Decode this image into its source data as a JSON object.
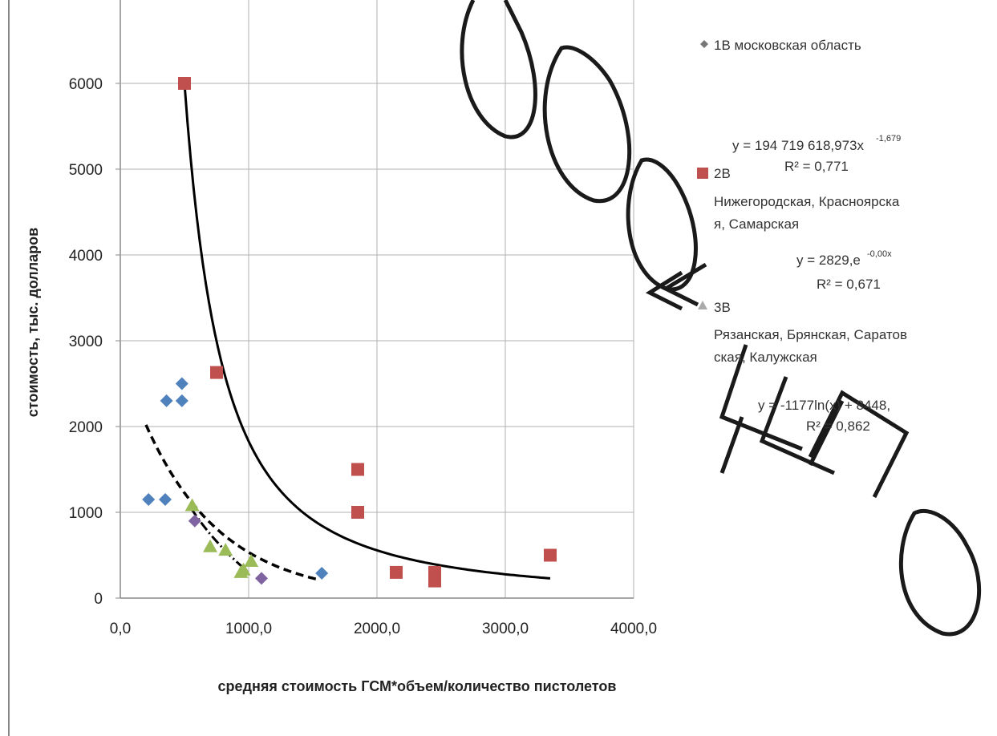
{
  "chart_data": {
    "type": "scatter",
    "title": "",
    "xlabel": "средняя стоимость ГСМ*объем/количество пистолетов",
    "ylabel": "стоимость, тыс. долларов",
    "xlim": [
      0,
      4000
    ],
    "ylim": [
      0,
      6000
    ],
    "x_ticks": [
      0,
      1000,
      2000,
      3000,
      4000
    ],
    "x_tick_labels": [
      "0,0",
      "1000,0",
      "2000,0",
      "3000,0",
      "4000,0"
    ],
    "y_ticks": [
      0,
      1000,
      2000,
      3000,
      4000,
      5000,
      6000
    ],
    "y_tick_labels": [
      "0",
      "1000",
      "2000",
      "3000",
      "4000",
      "5000",
      "6000"
    ],
    "grid": true,
    "legend_position": "right",
    "series": [
      {
        "name": "1В московская область",
        "marker": "diamond",
        "color": "#4f81bd",
        "points": [
          [
            220,
            1150
          ],
          [
            350,
            1150
          ],
          [
            360,
            2300
          ],
          [
            480,
            2300
          ],
          [
            480,
            2500
          ],
          [
            580,
            900
          ],
          [
            1100,
            230
          ],
          [
            1570,
            290
          ]
        ]
      },
      {
        "name": "2В Нижегородская, Красноярская, Самарская",
        "marker": "square",
        "color": "#c0504d",
        "points": [
          [
            500,
            6000
          ],
          [
            750,
            2630
          ],
          [
            1850,
            1500
          ],
          [
            1850,
            1000
          ],
          [
            2150,
            300
          ],
          [
            2450,
            300
          ],
          [
            2450,
            200
          ],
          [
            3350,
            500
          ]
        ]
      },
      {
        "name": "3В Рязанская, Брянская, Саратовская, Калужская",
        "marker": "triangle",
        "color": "#9bbb59",
        "points": [
          [
            560,
            1080
          ],
          [
            700,
            600
          ],
          [
            820,
            560
          ],
          [
            940,
            300
          ],
          [
            960,
            330
          ],
          [
            1020,
            430
          ]
        ]
      }
    ],
    "trendlines": [
      {
        "type": "power",
        "equation": "y = 194 719 618,973x",
        "exponent": "-1,679",
        "r2": "R² = 0,771",
        "style": "solid",
        "color": "#000000",
        "x_range": [
          500,
          3350
        ]
      },
      {
        "type": "exponential",
        "equation": "y = 2829,e",
        "exponent": "-0,00x",
        "r2": "R² = 0,671",
        "style": "dashed",
        "color": "#000000",
        "x_range": [
          200,
          1560
        ]
      },
      {
        "type": "logarithmic",
        "equation": "y = -1177ln(x) + 8448,",
        "r2": "R² = 0,862",
        "style": "dash-dot",
        "color": "#000000",
        "x_range": [
          550,
          1000
        ]
      }
    ],
    "legend_lines": {
      "s1": [
        "1В московская область"
      ],
      "s2": [
        "2В",
        "Нижегородская, Красноярска",
        "я, Самарская"
      ],
      "s3": [
        "3В",
        "Рязанская, Брянская, Саратов",
        "ская, Калужская"
      ]
    },
    "colors": {
      "diamond": "#4f81bd",
      "diamond_dark": "#8064a2",
      "square": "#c0504d",
      "triangle": "#9bbb59",
      "grid": "#b0b0b0",
      "watermark": "#1a1a1a"
    }
  }
}
